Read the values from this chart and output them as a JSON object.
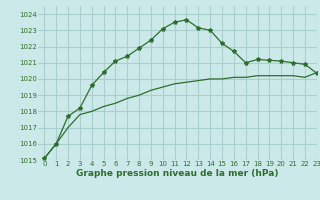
{
  "title": "Graphe pression niveau de la mer (hPa)",
  "bg_color": "#cce9e9",
  "grid_color": "#aacfcf",
  "line_color": "#2d6e2d",
  "marker_color": "#2d6e2d",
  "xlim": [
    -0.5,
    23
  ],
  "ylim": [
    1015,
    1024.5
  ],
  "yticks": [
    1015,
    1016,
    1017,
    1018,
    1019,
    1020,
    1021,
    1022,
    1023,
    1024
  ],
  "xticks": [
    0,
    1,
    2,
    3,
    4,
    5,
    6,
    7,
    8,
    9,
    10,
    11,
    12,
    13,
    14,
    15,
    16,
    17,
    18,
    19,
    20,
    21,
    22,
    23
  ],
  "line1_x": [
    0,
    1,
    2,
    3,
    4,
    5,
    6,
    7,
    8,
    9,
    10,
    11,
    12,
    13,
    14,
    15,
    16,
    17,
    18,
    19,
    20,
    21,
    22,
    23
  ],
  "line1_y": [
    1015.1,
    1016.0,
    1017.0,
    1017.8,
    1018.0,
    1018.3,
    1018.5,
    1018.8,
    1019.0,
    1019.3,
    1019.5,
    1019.7,
    1019.8,
    1019.9,
    1020.0,
    1020.0,
    1020.1,
    1020.1,
    1020.2,
    1020.2,
    1020.2,
    1020.2,
    1020.1,
    1020.4
  ],
  "line2_x": [
    0,
    1,
    2,
    3,
    4,
    5,
    6,
    7,
    8,
    9,
    10,
    11,
    12,
    13,
    14,
    15,
    16,
    17,
    18,
    19,
    20,
    21,
    22,
    23
  ],
  "line2_y": [
    1015.1,
    1016.0,
    1017.7,
    1018.2,
    1019.6,
    1020.4,
    1021.1,
    1021.4,
    1021.9,
    1022.4,
    1023.1,
    1023.5,
    1023.65,
    1023.15,
    1023.0,
    1022.2,
    1021.7,
    1021.0,
    1021.2,
    1021.15,
    1021.1,
    1021.0,
    1020.9,
    1020.35
  ],
  "title_fontsize": 6.5
}
